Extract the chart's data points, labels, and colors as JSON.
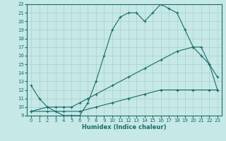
{
  "xlabel": "Humidex (Indice chaleur)",
  "bg_color": "#c6e8e6",
  "grid_color": "#a8d0cc",
  "line_color": "#1a6b6b",
  "xlim": [
    -0.5,
    23.5
  ],
  "ylim": [
    9,
    22
  ],
  "yticks": [
    9,
    10,
    11,
    12,
    13,
    14,
    15,
    16,
    17,
    18,
    19,
    20,
    21,
    22
  ],
  "xticks": [
    0,
    1,
    2,
    3,
    4,
    5,
    6,
    7,
    8,
    9,
    10,
    11,
    12,
    13,
    14,
    15,
    16,
    17,
    18,
    19,
    20,
    21,
    22,
    23
  ],
  "line1_x": [
    0,
    1,
    2,
    3,
    4,
    5,
    6,
    7,
    8,
    9,
    10,
    11,
    12,
    13,
    14,
    15,
    16,
    17,
    18,
    19,
    20,
    21,
    22,
    23
  ],
  "line1_y": [
    12.5,
    11.0,
    10.0,
    9.5,
    9.0,
    9.0,
    9.0,
    10.5,
    13.0,
    16.0,
    19.0,
    20.5,
    21.0,
    21.0,
    20.0,
    21.0,
    22.0,
    21.5,
    21.0,
    19.0,
    17.0,
    16.0,
    15.0,
    12.0
  ],
  "line2_x": [
    0,
    2,
    3,
    4,
    5,
    6,
    7,
    8,
    10,
    12,
    14,
    16,
    18,
    20,
    21,
    22,
    23
  ],
  "line2_y": [
    9.5,
    10.0,
    10.0,
    10.0,
    10.0,
    10.5,
    11.0,
    11.5,
    12.5,
    13.5,
    14.5,
    15.5,
    16.5,
    17.0,
    17.0,
    15.0,
    13.5
  ],
  "line3_x": [
    0,
    2,
    4,
    6,
    8,
    10,
    12,
    14,
    16,
    18,
    20,
    22,
    23
  ],
  "line3_y": [
    9.5,
    9.5,
    9.5,
    9.5,
    10.0,
    10.5,
    11.0,
    11.5,
    12.0,
    12.0,
    12.0,
    12.0,
    12.0
  ]
}
